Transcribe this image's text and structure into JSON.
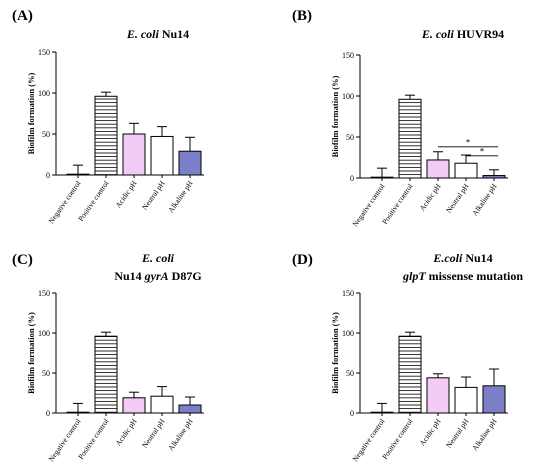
{
  "chart_data": [
    {
      "type": "bar",
      "panel_label": "(A)",
      "title_lines": [
        [
          {
            "text": "E. coli",
            "italic": true
          },
          {
            "text": " Nu14",
            "italic": false
          }
        ]
      ],
      "ylabel": "Biofilm formation (%)",
      "ylim": [
        0,
        150
      ],
      "yticks": [
        "0",
        "50",
        "100",
        "150"
      ],
      "categories": [
        "Negative control",
        "Positive control",
        "Acidic pH",
        "Neutral pH",
        "Alkaline pH"
      ],
      "values": [
        1,
        96,
        50,
        47,
        29
      ],
      "errors": [
        11,
        5,
        13,
        12,
        17
      ],
      "significance": []
    },
    {
      "type": "bar",
      "panel_label": "(B)",
      "title_lines": [
        [
          {
            "text": "E. coli",
            "italic": true
          },
          {
            "text": " HUVR94",
            "italic": false
          }
        ]
      ],
      "ylabel": "Biofilm formation (%)",
      "ylim": [
        0,
        150
      ],
      "yticks": [
        "0",
        "50",
        "100",
        "150"
      ],
      "categories": [
        "Negative control",
        "Positive control",
        "Acidic pH",
        "Neutral pH",
        "Alkaline pH"
      ],
      "values": [
        1,
        96,
        22,
        18,
        3
      ],
      "errors": [
        11,
        5,
        10,
        10,
        7
      ],
      "significance": [
        {
          "from": 2,
          "to": 4,
          "y": 38,
          "label": "*"
        },
        {
          "from": 3,
          "to": 4,
          "y": 27,
          "label": "*"
        }
      ]
    },
    {
      "type": "bar",
      "panel_label": "(C)",
      "title_lines": [
        [
          {
            "text": "E. coli",
            "italic": true
          }
        ],
        [
          {
            "text": "Nu14 ",
            "italic": false
          },
          {
            "text": "gyrA",
            "italic": true
          },
          {
            "text": " D87G",
            "italic": false
          }
        ]
      ],
      "ylabel": "Biofilm formation (%)",
      "ylim": [
        0,
        150
      ],
      "yticks": [
        "0",
        "50",
        "100",
        "150"
      ],
      "categories": [
        "Negative control",
        "Positive control",
        "Acidic pH",
        "Neutral pH",
        "Alkaline pH"
      ],
      "values": [
        1,
        96,
        19,
        21,
        10
      ],
      "errors": [
        11,
        5,
        7,
        12,
        10
      ],
      "significance": []
    },
    {
      "type": "bar",
      "panel_label": "(D)",
      "title_lines": [
        [
          {
            "text": "E.coli",
            "italic": true
          },
          {
            "text": " Nu14",
            "italic": false
          }
        ],
        [
          {
            "text": "glpT",
            "italic": true
          },
          {
            "text": " missense mutation",
            "italic": false
          }
        ]
      ],
      "ylabel": "Biofilm formation (%)",
      "ylim": [
        0,
        150
      ],
      "yticks": [
        "0",
        "50",
        "100",
        "150"
      ],
      "categories": [
        "Negative control",
        "Positive control",
        "Acidic pH",
        "Neutral pH",
        "Alkaline pH"
      ],
      "values": [
        1,
        96,
        44,
        32,
        34
      ],
      "errors": [
        11,
        5,
        5,
        13,
        21
      ],
      "significance": []
    }
  ],
  "colors": {
    "negative": "#ffffff",
    "positive_hatch": "#000000",
    "acidic": "#f2ccf5",
    "neutral": "#ffffff",
    "alkaline": "#7b7fc7",
    "axis": "#000000"
  }
}
